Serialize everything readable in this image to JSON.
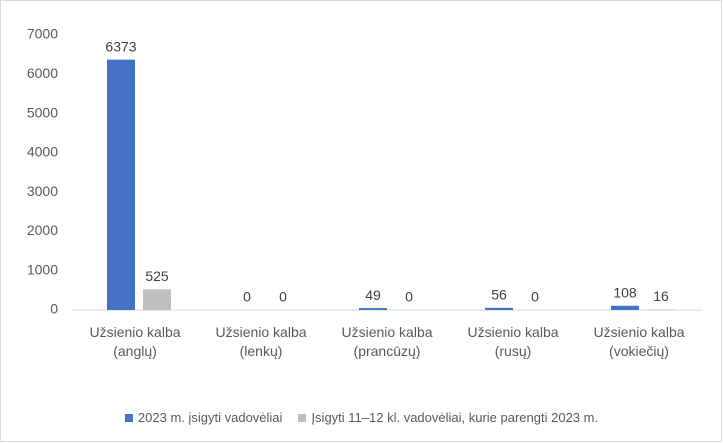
{
  "chart_data": {
    "type": "bar",
    "categories": [
      "Užsienio kalba (anglų)",
      "Užsienio kalba (lenkų)",
      "Užsienio kalba (prancūzų)",
      "Užsienio kalba (rusų)",
      "Užsienio kalba (vokiečių)"
    ],
    "series": [
      {
        "name": "2023 m. įsigyti vadovėliai",
        "color": "#4472c4",
        "values": [
          6373,
          0,
          49,
          56,
          108
        ]
      },
      {
        "name": "Įsigyti 11–12 kl. vadovėliai, kurie parengti 2023 m.",
        "color": "#bfbfbf",
        "values": [
          525,
          0,
          0,
          0,
          16
        ]
      }
    ],
    "ylim": [
      0,
      7000
    ],
    "yticks": [
      0,
      1000,
      2000,
      3000,
      4000,
      5000,
      6000,
      7000
    ],
    "grid": false,
    "legend": "bottom"
  }
}
